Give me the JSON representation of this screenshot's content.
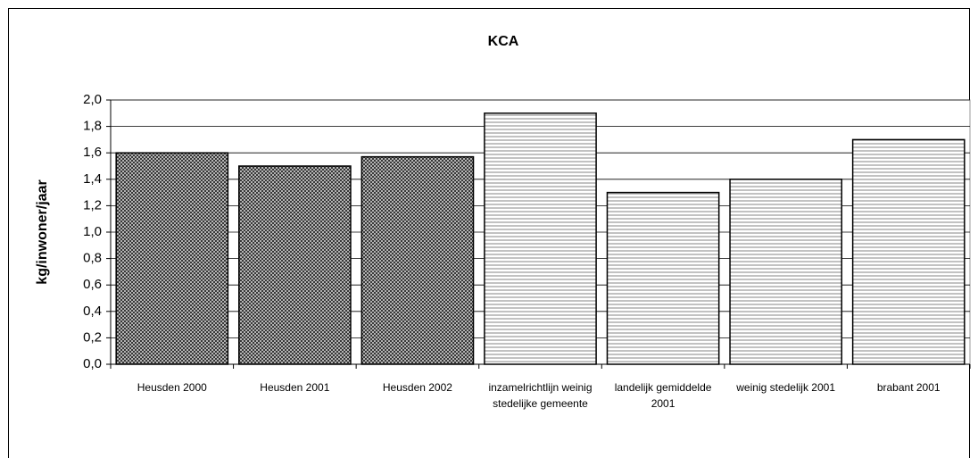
{
  "chart_data": {
    "type": "bar",
    "title": "KCA",
    "y_label": "kg/inwoner/jaar",
    "categories": [
      "Heusden 2000",
      "Heusden 2001",
      "Heusden 2002",
      "inzamelrichtlijn weinig stedelijke gemeente",
      "landelijk gemiddelde 2001",
      "weinig stedelijk 2001",
      "brabant 2001"
    ],
    "values": [
      1.6,
      1.5,
      1.57,
      1.9,
      1.3,
      1.4,
      1.7
    ],
    "colors": [
      "#333333",
      "#333333",
      "#333333",
      "#999999",
      "#999999",
      "#999999",
      "#999999"
    ],
    "ylim": [
      0,
      2
    ],
    "yticks": [
      {
        "value": 0,
        "label": "0,0"
      },
      {
        "value": 0.2,
        "label": "0,2"
      },
      {
        "value": 0.4,
        "label": "0,4"
      },
      {
        "value": 0.6,
        "label": "0,6"
      },
      {
        "value": 0.8,
        "label": "0,8"
      },
      {
        "value": 1,
        "label": "1,0"
      },
      {
        "value": 1.2,
        "label": "1,2"
      },
      {
        "value": 1.4,
        "label": "1,4"
      },
      {
        "value": 1.6,
        "label": "1,6"
      },
      {
        "value": 1.8,
        "label": "1,8"
      },
      {
        "value": 2,
        "label": "2,0"
      }
    ],
    "grid": true
  }
}
